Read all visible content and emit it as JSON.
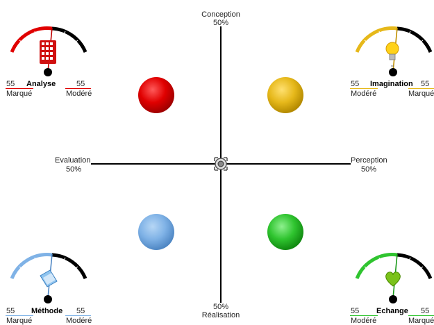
{
  "axes": {
    "top": {
      "label": "Conception",
      "value": "50%"
    },
    "bottom": {
      "label": "Réalisation",
      "value": "50%"
    },
    "left": {
      "label": "Evaluation",
      "value": "50%"
    },
    "right": {
      "label": "Perception",
      "value": "50%"
    }
  },
  "colors": {
    "red": "#e00000",
    "yellow": "#e6b81a",
    "blue": "#7fb2e6",
    "green": "#2fc42f"
  },
  "gauges": {
    "analyse": {
      "title": "Analyse",
      "left_value": "55",
      "left_label": "Marqué",
      "right_value": "55",
      "right_label": "Modéré",
      "icon": "calculator-icon",
      "color": "#e00000"
    },
    "imagination": {
      "title": "Imagination",
      "left_value": "55",
      "left_label": "Modéré",
      "right_value": "55",
      "right_label": "Marqué",
      "icon": "lightbulb-icon",
      "color": "#e6b81a"
    },
    "methode": {
      "title": "Méthode",
      "left_value": "55",
      "left_label": "Marqué",
      "right_value": "55",
      "right_label": "Modéré",
      "icon": "folder-icon",
      "color": "#7fb2e6"
    },
    "echange": {
      "title": "Echange",
      "left_value": "55",
      "left_label": "Modéré",
      "right_value": "55",
      "right_label": "Marqué",
      "icon": "heart-icon",
      "color": "#2fc42f"
    }
  }
}
